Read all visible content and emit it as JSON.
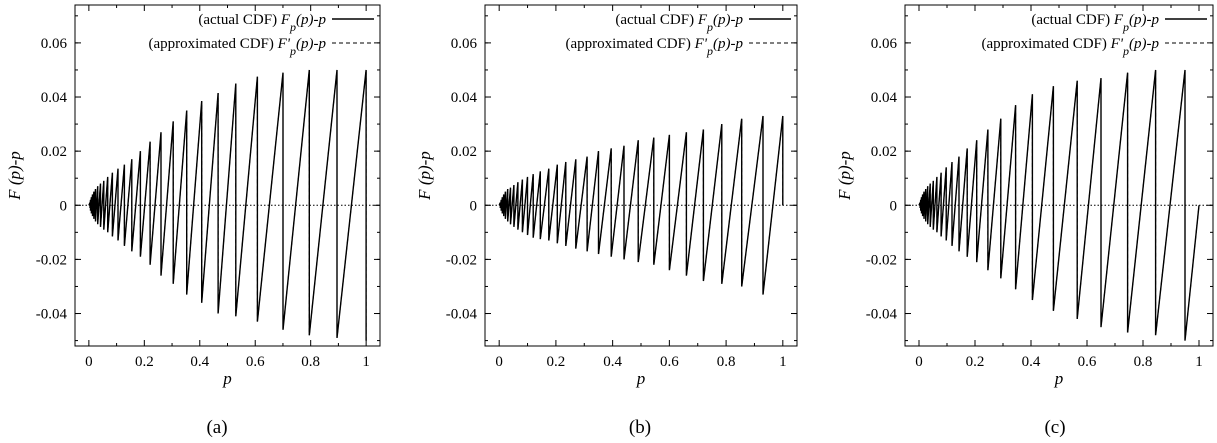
{
  "figure": {
    "legend_entries": [
      {
        "label": "(actual CDF) F_p(p)-p",
        "style": "solid"
      },
      {
        "label": "(approximated CDF) F'_p(p)-p",
        "style": "dashed"
      }
    ],
    "xlabel": "p",
    "ylabel": "F (p)-p",
    "x_ticks": [
      "0",
      "0.2",
      "0.4",
      "0.6",
      "0.8",
      "1"
    ],
    "y_ticks": [
      "0.06",
      "0.04",
      "0.02",
      "0",
      "-0.02",
      "-0.04"
    ],
    "reference_line": "y = 0 (dotted)"
  },
  "chart_data": [
    {
      "type": "line",
      "caption": "(a)",
      "xlabel": "p",
      "ylabel": "F (p)-p",
      "xlim": [
        -0.05,
        1.05
      ],
      "ylim": [
        -0.052,
        0.074
      ],
      "grid": false,
      "legend_placement": "top-right",
      "series": [
        {
          "name": "(actual CDF) F_p(p)-p",
          "style": "solid",
          "description": "sawtooth: rises linearly between jumps, drops vertically at each jump",
          "jump_x": [
            0.004,
            0.006,
            0.009,
            0.013,
            0.018,
            0.024,
            0.032,
            0.042,
            0.054,
            0.068,
            0.085,
            0.105,
            0.128,
            0.155,
            0.186,
            0.221,
            0.26,
            0.304,
            0.353,
            0.407,
            0.466,
            0.53,
            0.608,
            0.7,
            0.795,
            0.895,
            1.0
          ],
          "peak_y": [
            0.001,
            0.002,
            0.003,
            0.004,
            0.005,
            0.006,
            0.007,
            0.008,
            0.009,
            0.0105,
            0.012,
            0.0135,
            0.015,
            0.017,
            0.02,
            0.0235,
            0.027,
            0.031,
            0.035,
            0.0385,
            0.0415,
            0.045,
            0.0475,
            0.049,
            0.05,
            0.05,
            0.05
          ],
          "trough_y": [
            -0.001,
            -0.002,
            -0.003,
            -0.004,
            -0.005,
            -0.006,
            -0.007,
            -0.008,
            -0.009,
            -0.01,
            -0.0115,
            -0.013,
            -0.015,
            -0.017,
            -0.019,
            -0.022,
            -0.026,
            -0.029,
            -0.033,
            -0.036,
            -0.04,
            -0.041,
            -0.043,
            -0.046,
            -0.048,
            -0.049,
            -0.05
          ]
        },
        {
          "name": "(approximated CDF) F'_p(p)-p",
          "style": "dashed",
          "description": "coincides with the actual CDF curve"
        }
      ]
    },
    {
      "type": "line",
      "caption": "(b)",
      "xlabel": "p",
      "ylabel": "F (p)-p",
      "xlim": [
        -0.05,
        1.05
      ],
      "ylim": [
        -0.052,
        0.074
      ],
      "grid": false,
      "legend_placement": "top-right",
      "series": [
        {
          "name": "(actual CDF) F_p(p)-p",
          "style": "solid",
          "description": "sawtooth with nearly uniform spacing and amplitude growing to about 0.033",
          "jump_x": [
            0.004,
            0.007,
            0.011,
            0.016,
            0.022,
            0.03,
            0.04,
            0.052,
            0.066,
            0.082,
            0.1,
            0.12,
            0.145,
            0.175,
            0.205,
            0.235,
            0.27,
            0.31,
            0.35,
            0.395,
            0.44,
            0.49,
            0.545,
            0.6,
            0.66,
            0.72,
            0.785,
            0.855,
            0.93,
            1.0
          ],
          "peak_y": [
            0.001,
            0.002,
            0.003,
            0.004,
            0.005,
            0.006,
            0.0065,
            0.0075,
            0.0085,
            0.0095,
            0.0105,
            0.0115,
            0.0125,
            0.0135,
            0.015,
            0.016,
            0.017,
            0.018,
            0.02,
            0.021,
            0.022,
            0.024,
            0.025,
            0.026,
            0.027,
            0.028,
            0.03,
            0.032,
            0.033,
            0.033
          ],
          "trough_y": [
            -0.001,
            -0.002,
            -0.003,
            -0.004,
            -0.005,
            -0.006,
            -0.007,
            -0.008,
            -0.009,
            -0.01,
            -0.011,
            -0.012,
            -0.0125,
            -0.013,
            -0.014,
            -0.015,
            -0.016,
            -0.017,
            -0.018,
            -0.019,
            -0.02,
            -0.021,
            -0.022,
            -0.024,
            -0.026,
            -0.028,
            -0.029,
            -0.03,
            -0.033,
            0.0
          ]
        },
        {
          "name": "(approximated CDF) F'_p(p)-p",
          "style": "dashed",
          "description": "coincides with the actual CDF curve"
        }
      ]
    },
    {
      "type": "line",
      "caption": "(c)",
      "xlabel": "p",
      "ylabel": "F (p)-p",
      "xlim": [
        -0.05,
        1.05
      ],
      "ylim": [
        -0.052,
        0.074
      ],
      "grid": false,
      "legend_placement": "top-right",
      "series": [
        {
          "name": "(actual CDF) F_p(p)-p",
          "style": "solid",
          "description": "sawtooth with amplitude growing to about 0.05, final segment ending at p = 1",
          "jump_x": [
            0.004,
            0.006,
            0.009,
            0.013,
            0.018,
            0.024,
            0.031,
            0.04,
            0.051,
            0.064,
            0.079,
            0.097,
            0.118,
            0.143,
            0.172,
            0.206,
            0.246,
            0.292,
            0.345,
            0.405,
            0.48,
            0.565,
            0.65,
            0.745,
            0.845,
            0.95,
            1.0
          ],
          "peak_y": [
            0.001,
            0.002,
            0.003,
            0.004,
            0.005,
            0.006,
            0.007,
            0.008,
            0.009,
            0.0105,
            0.012,
            0.014,
            0.016,
            0.018,
            0.021,
            0.024,
            0.028,
            0.032,
            0.037,
            0.041,
            0.044,
            0.046,
            0.047,
            0.049,
            0.05,
            0.05,
            0.0
          ],
          "trough_y": [
            -0.001,
            -0.002,
            -0.003,
            -0.004,
            -0.005,
            -0.006,
            -0.007,
            -0.008,
            -0.009,
            -0.01,
            -0.0115,
            -0.013,
            -0.015,
            -0.017,
            -0.019,
            -0.021,
            -0.024,
            -0.027,
            -0.031,
            -0.035,
            -0.039,
            -0.042,
            -0.045,
            -0.047,
            -0.048,
            -0.05,
            0.0
          ]
        },
        {
          "name": "(approximated CDF) F'_p(p)-p",
          "style": "dashed",
          "description": "coincides with the actual CDF curve"
        }
      ]
    }
  ]
}
